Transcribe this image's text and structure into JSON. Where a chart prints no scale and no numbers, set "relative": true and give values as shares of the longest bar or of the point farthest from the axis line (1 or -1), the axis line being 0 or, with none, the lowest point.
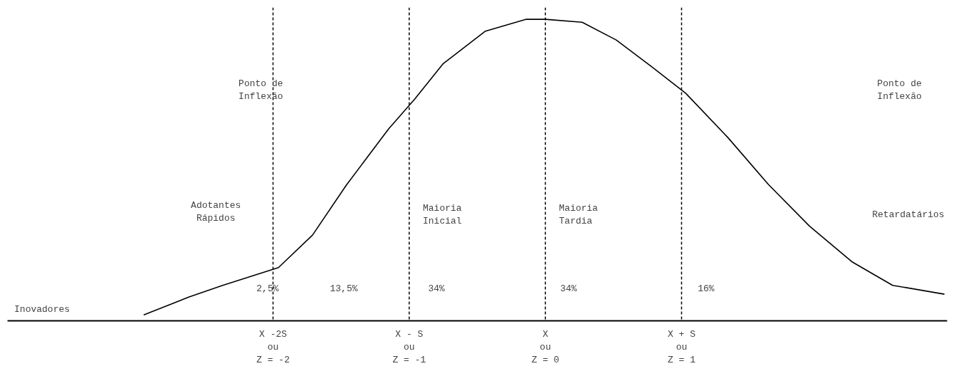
{
  "chart_data": {
    "type": "line",
    "relative": true,
    "x": [
      -2.95,
      -2.62,
      -2.37,
      -1.96,
      -1.71,
      -1.46,
      -1.15,
      -0.96,
      -0.75,
      -0.44,
      -0.14,
      0,
      0.27,
      0.52,
      0.78,
      1.03,
      1.34,
      1.64,
      1.94,
      2.25,
      2.55,
      2.93
    ],
    "series": [
      {
        "color": "#000000",
        "values": [
          0,
          0.06,
          0.1,
          0.16,
          0.27,
          0.44,
          0.63,
          0.73,
          0.85,
          0.96,
          1.0,
          1.0,
          0.99,
          0.93,
          0.84,
          0.75,
          0.6,
          0.44,
          0.3,
          0.18,
          0.1,
          0.07
        ]
      }
    ],
    "xlim": [
      -3.95,
      2.95
    ],
    "xticks": [
      {
        "value": -2,
        "label": "X -2S\nou\nZ = -2"
      },
      {
        "value": -1,
        "label": "X - S\nou\nZ = -1"
      },
      {
        "value": 0,
        "label": "X\nou\nZ = 0"
      },
      {
        "value": 1,
        "label": "X + S\nou\nZ = 1"
      }
    ],
    "tick_labels": "x",
    "grid": false,
    "marker": "none",
    "line_style": "solid",
    "ref_lines": [
      {
        "axis": "x",
        "value": -2,
        "label": null,
        "line_style": "dashed"
      },
      {
        "axis": "x",
        "value": -1,
        "label": null,
        "line_style": "dashed"
      },
      {
        "axis": "x",
        "value": 0,
        "label": null,
        "line_style": "dashed"
      },
      {
        "axis": "x",
        "value": 1,
        "label": null,
        "line_style": "dashed"
      }
    ],
    "annotations": [
      "Ponto de\nInflexão",
      "Ponto de\nInflexão",
      "Adotantes\nRápidos",
      "Maioria\nInicial",
      "Maioria\nTardia",
      "Retardatários",
      "Inovadores",
      "2,5%",
      "13,5%",
      "34%",
      "34%",
      "16%"
    ]
  }
}
